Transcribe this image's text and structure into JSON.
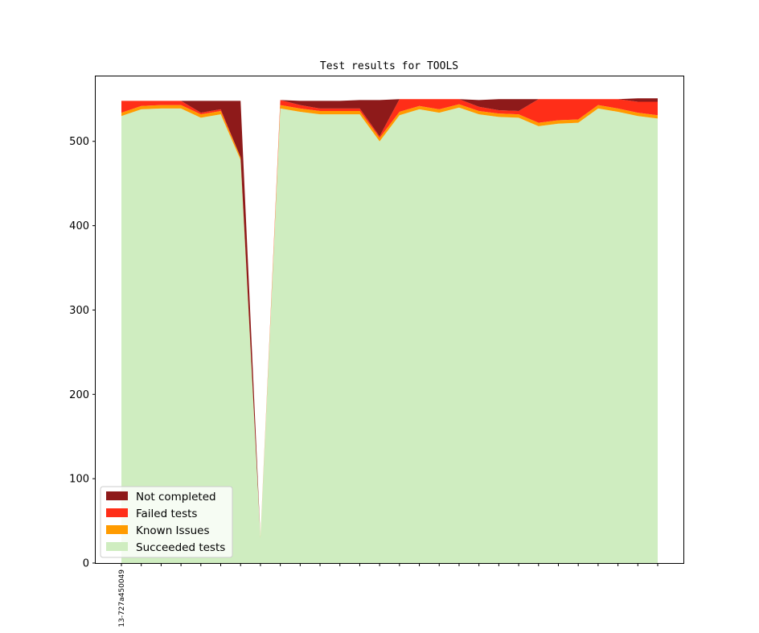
{
  "chart_data": {
    "type": "area",
    "stacked": true,
    "title": "Test results for TOOLS",
    "xlabel": "",
    "ylabel": "",
    "ylim": [
      0,
      577
    ],
    "yticks": [
      0,
      100,
      200,
      300,
      400,
      500
    ],
    "x_tick_labels": [
      "13-727a450049"
    ],
    "legend": "lower-left",
    "grid": false,
    "series": [
      {
        "name": "Succeeded tests",
        "color": "#cfedc0",
        "values": [
          530,
          538,
          539,
          539,
          528,
          532,
          478,
          30,
          539,
          535,
          532,
          532,
          532,
          500,
          531,
          538,
          534,
          540,
          532,
          529,
          528,
          518,
          521,
          522,
          539,
          535,
          530,
          527
        ]
      },
      {
        "name": "Known Issues",
        "color": "#ff9b00",
        "values": [
          4,
          4,
          4,
          4,
          4,
          4,
          3,
          1,
          4,
          4,
          4,
          4,
          4,
          4,
          4,
          4,
          4,
          4,
          4,
          4,
          4,
          4,
          4,
          4,
          4,
          4,
          4,
          4
        ]
      },
      {
        "name": "Failed tests",
        "color": "#ff2e18",
        "values": [
          14,
          6,
          5,
          5,
          2,
          2,
          0,
          0,
          6,
          4,
          3,
          3,
          3,
          2,
          15,
          8,
          12,
          6,
          5,
          4,
          4,
          28,
          25,
          24,
          7,
          11,
          13,
          16
        ]
      },
      {
        "name": "Not completed",
        "color": "#8e1a1a",
        "values": [
          0,
          0,
          0,
          0,
          14,
          10,
          67,
          0,
          0,
          5,
          9,
          9,
          10,
          43,
          0,
          0,
          0,
          0,
          8,
          13,
          14,
          0,
          0,
          0,
          0,
          0,
          4,
          4
        ]
      }
    ]
  }
}
